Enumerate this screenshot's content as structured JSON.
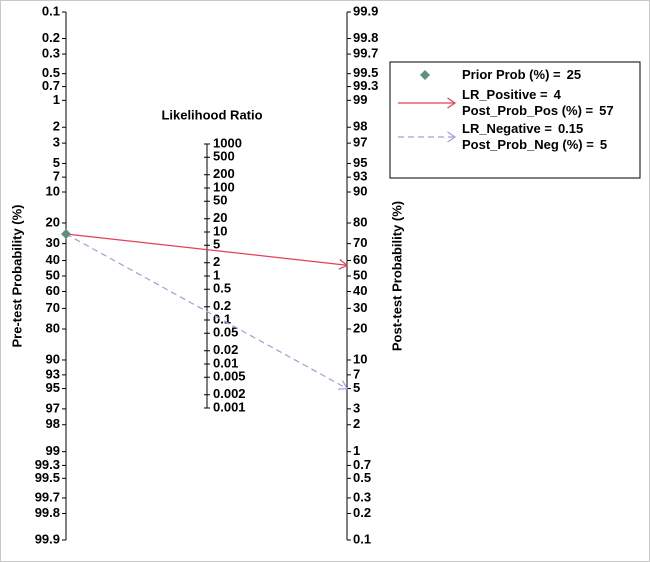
{
  "chart_data": {
    "type": "nomogram",
    "left_label": "Pre-test Probability (%)",
    "right_label": "Post-test Probability (%)",
    "middle_label": "Likelihood Ratio",
    "ylim": [
      0.1,
      99.9
    ],
    "yticks": [
      0.1,
      0.2,
      0.3,
      0.5,
      0.7,
      1,
      2,
      3,
      5,
      7,
      10,
      20,
      30,
      40,
      50,
      60,
      70,
      80,
      90,
      93,
      95,
      97,
      98,
      99,
      99.3,
      99.5,
      99.7,
      99.8,
      99.9
    ],
    "y2lim": [
      99.9,
      0.1
    ],
    "y2ticks": [
      99.9,
      99.8,
      99.7,
      99.5,
      99.3,
      99,
      98,
      97,
      95,
      93,
      90,
      80,
      70,
      60,
      50,
      40,
      30,
      20,
      10,
      7,
      5,
      3,
      2,
      1,
      0.7,
      0.5,
      0.3,
      0.2,
      0.1
    ],
    "lrlim": [
      1000,
      0.001
    ],
    "lrticks": [
      1000,
      500,
      200,
      100,
      50,
      20,
      10,
      5,
      2,
      1,
      0.5,
      0.2,
      0.1,
      0.05,
      0.02,
      0.01,
      0.005,
      0.002,
      0.001
    ],
    "prior": {
      "label": "Prior Prob (%) =",
      "value": 25,
      "color": "#5f8f7f"
    },
    "series": [
      {
        "name": "LR_Positive =",
        "lr": 4,
        "post_label": "Post_Prob_Pos (%) =",
        "post": 57,
        "color": "#e0405a",
        "style": "solid"
      },
      {
        "name": "LR_Negative =",
        "lr": 0.15,
        "post_label": "Post_Prob_Neg (%) =",
        "post": 5,
        "color": "#9f9fdc",
        "style": "dashed"
      }
    ]
  }
}
